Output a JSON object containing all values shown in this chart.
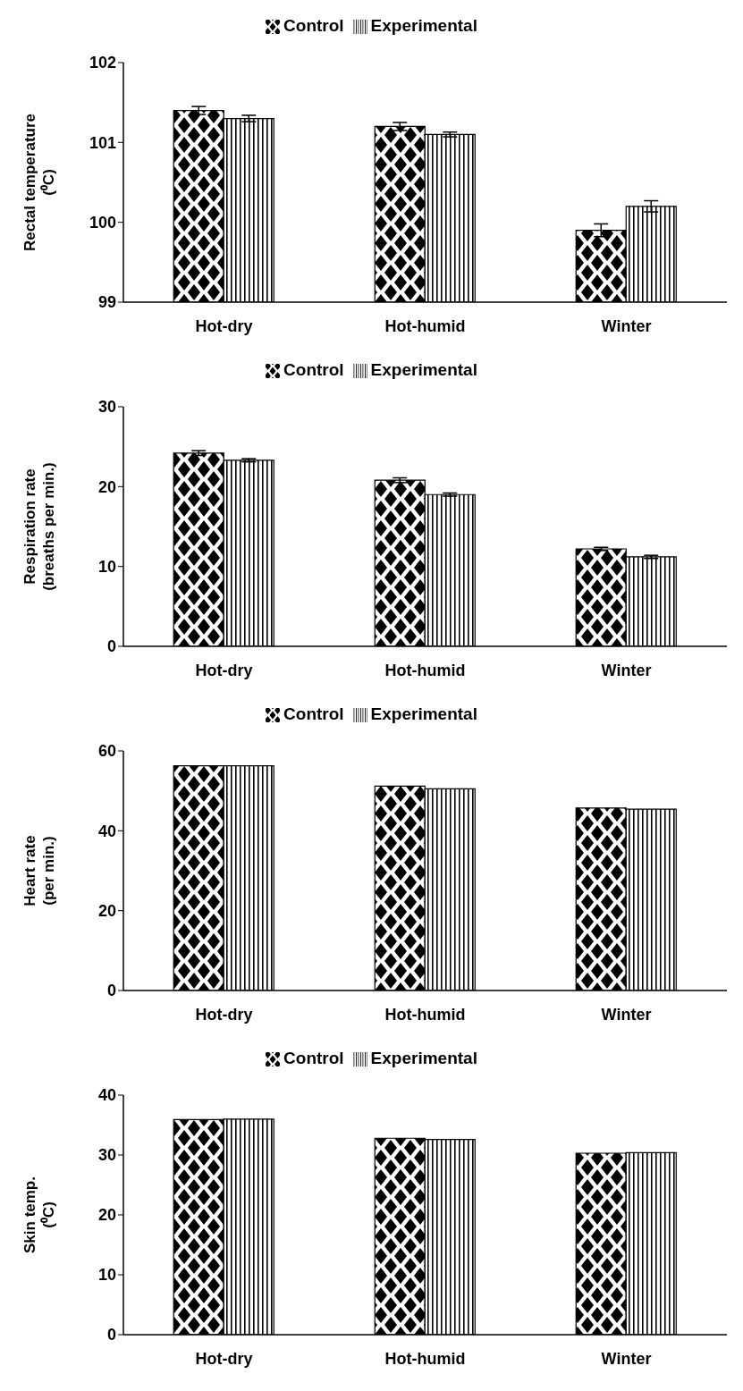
{
  "chart_data": [
    {
      "type": "bar",
      "ylabel": "Rectal temperature\n(⁰C)",
      "categories": [
        "Hot-dry",
        "Hot-humid",
        "Winter"
      ],
      "ylim": [
        99,
        102
      ],
      "yticks": [
        99,
        100,
        101,
        102
      ],
      "legend": "top",
      "grid": false,
      "series": [
        {
          "name": "Control",
          "color": "#000000",
          "values": [
            101.4,
            101.2,
            99.9
          ],
          "errors": [
            0.05,
            0.05,
            0.08
          ]
        },
        {
          "name": "Experimental",
          "color": "#000000",
          "values": [
            101.3,
            101.1,
            100.2
          ],
          "errors": [
            0.04,
            0.03,
            0.07
          ]
        }
      ]
    },
    {
      "type": "bar",
      "ylabel": "Respiration rate\n(breaths per min.)",
      "categories": [
        "Hot-dry",
        "Hot-humid",
        "Winter"
      ],
      "ylim": [
        0,
        30
      ],
      "yticks": [
        0,
        10,
        20,
        30
      ],
      "legend": "top",
      "grid": false,
      "series": [
        {
          "name": "Control",
          "color": "#000000",
          "values": [
            24.2,
            20.8,
            12.2
          ],
          "errors": [
            0.3,
            0.3,
            0.2
          ]
        },
        {
          "name": "Experimental",
          "color": "#000000",
          "values": [
            23.3,
            19.0,
            11.2
          ],
          "errors": [
            0.2,
            0.2,
            0.2
          ]
        }
      ]
    },
    {
      "type": "bar",
      "ylabel": "Heart rate\n(per min.)",
      "categories": [
        "Hot-dry",
        "Hot-humid",
        "Winter"
      ],
      "ylim": [
        0,
        60
      ],
      "yticks": [
        0,
        20,
        40,
        60
      ],
      "legend": "top",
      "grid": false,
      "series": [
        {
          "name": "Control",
          "color": "#000000",
          "values": [
            56.3,
            51.2,
            45.7
          ]
        },
        {
          "name": "Experimental",
          "color": "#000000",
          "values": [
            56.3,
            50.5,
            45.4
          ]
        }
      ]
    },
    {
      "type": "bar",
      "ylabel": "Skin temp.\n(⁰C)",
      "categories": [
        "Hot-dry",
        "Hot-humid",
        "Winter"
      ],
      "ylim": [
        0,
        40
      ],
      "yticks": [
        0,
        10,
        20,
        30,
        40
      ],
      "legend": "top",
      "grid": false,
      "series": [
        {
          "name": "Control",
          "color": "#000000",
          "values": [
            35.9,
            32.8,
            30.3
          ]
        },
        {
          "name": "Experimental",
          "color": "#000000",
          "values": [
            36.0,
            32.6,
            30.4
          ]
        }
      ]
    }
  ]
}
